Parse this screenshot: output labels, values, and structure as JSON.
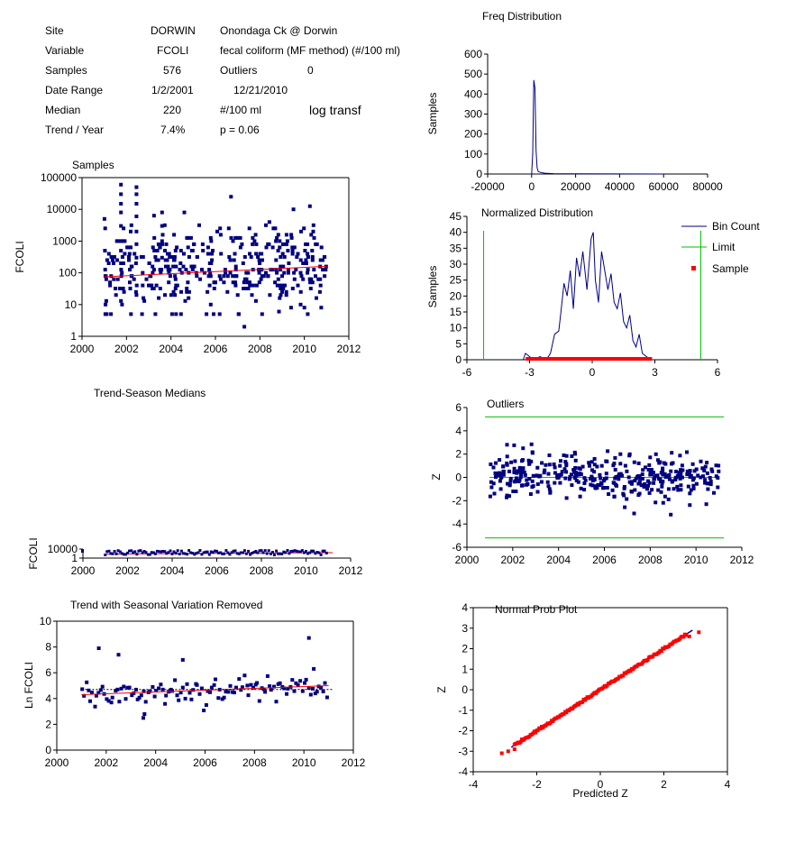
{
  "info": {
    "site_label": "Site",
    "site_value": "DORWIN",
    "site_desc": "Onondaga Ck @ Dorwin",
    "variable_label": "Variable",
    "variable_value": "FCOLI",
    "variable_desc": "fecal coliform (MF method) (#/100 ml)",
    "samples_label": "Samples",
    "samples_value": "576",
    "outliers_label": "Outliers",
    "outliers_value": "0",
    "daterange_label": "Date Range",
    "date_start": "1/2/2001",
    "date_end": "12/21/2010",
    "median_label": "Median",
    "median_value": "220",
    "median_unit": "#/100 ml",
    "transform_note": "log transf",
    "trend_label": "Trend / Year",
    "trend_value": "7.4%",
    "p_value": "p = 0.06"
  },
  "colors": {
    "series": "#000080",
    "trend": "#ff0000",
    "limit": "#00c000",
    "sample": "#ff0000"
  },
  "chart_data": [
    {
      "id": "samples",
      "type": "scatter",
      "title": "Samples",
      "ylabel": "FCOLI",
      "xlabel": "",
      "xlim": [
        2000,
        2012
      ],
      "xticks": [
        "2000",
        "2002",
        "2004",
        "2006",
        "2008",
        "2010",
        "2012"
      ],
      "ylim": [
        1,
        100000
      ],
      "yscale": "log",
      "yticks": [
        "1",
        "10",
        "100",
        "1000",
        "10000",
        "100000"
      ],
      "trend_line": {
        "x": [
          2001.0,
          2011.0
        ],
        "y": [
          75,
          160
        ]
      },
      "series": [
        {
          "x": [],
          "y": []
        }
      ]
    },
    {
      "id": "freq",
      "type": "line",
      "title": "Freq Distribution",
      "ylabel": "Samples",
      "xlabel": "",
      "xlim": [
        -20000,
        80000
      ],
      "xticks": [
        "-20000",
        "0",
        "20000",
        "40000",
        "60000",
        "80000"
      ],
      "ylim": [
        0,
        600
      ],
      "yticks": [
        "0",
        "100",
        "200",
        "300",
        "400",
        "500",
        "600"
      ],
      "series": [
        {
          "x": [
            -1000,
            0,
            500,
            1000,
            1500,
            2000,
            2500,
            3000,
            4000,
            6000,
            10000,
            20000,
            60000
          ],
          "y": [
            0,
            0,
            100,
            470,
            430,
            120,
            30,
            12,
            8,
            4,
            2,
            1,
            0
          ]
        }
      ]
    },
    {
      "id": "normalized",
      "type": "line",
      "title": "Normalized Distribution",
      "ylabel": "Samples",
      "xlabel": "",
      "xlim": [
        -6,
        6
      ],
      "xticks": [
        "-6",
        "-3",
        "0",
        "3",
        "6"
      ],
      "ylim": [
        0,
        45
      ],
      "yticks": [
        "0",
        "5",
        "10",
        "15",
        "20",
        "25",
        "30",
        "35",
        "40",
        "45"
      ],
      "limits": [
        -5.2,
        5.2
      ],
      "legend": [
        "Bin Count",
        "Limit",
        "Sample"
      ],
      "legend_position": "right",
      "series": [
        {
          "x": [
            -3.3,
            -3.2,
            -3.0,
            -2.8,
            -2.5,
            -2.2,
            -2.0,
            -1.8,
            -1.6,
            -1.5,
            -1.35,
            -1.2,
            -1.05,
            -0.9,
            -0.75,
            -0.6,
            -0.45,
            -0.35,
            -0.25,
            -0.15,
            -0.05,
            0.05,
            0.15,
            0.3,
            0.45,
            0.6,
            0.75,
            0.9,
            1.05,
            1.2,
            1.35,
            1.5,
            1.65,
            1.8,
            1.95,
            2.1,
            2.25,
            2.4,
            2.6,
            2.8,
            3.0
          ],
          "y": [
            0,
            2,
            1,
            0,
            1,
            0,
            2,
            8,
            9,
            15,
            24,
            20,
            28,
            16,
            32,
            26,
            34,
            28,
            22,
            30,
            38,
            40,
            25,
            18,
            34,
            28,
            22,
            27,
            18,
            16,
            21,
            12,
            10,
            14,
            6,
            4,
            8,
            2,
            1,
            0,
            0
          ]
        }
      ]
    },
    {
      "id": "trend_season",
      "type": "scatter",
      "title": "Trend-Season Medians",
      "ylabel": "FCOLI",
      "xlabel": "",
      "xlim": [
        2000,
        2012
      ],
      "xticks": [
        "2000",
        "2002",
        "2004",
        "2006",
        "2008",
        "2010",
        "2012"
      ],
      "yticks": [
        "1",
        "10000"
      ],
      "series": [
        {
          "x": [],
          "y": []
        }
      ]
    },
    {
      "id": "outliers",
      "type": "scatter",
      "title": "Outliers",
      "ylabel": "Z",
      "xlabel": "",
      "xlim": [
        2000,
        2012
      ],
      "xticks": [
        "2000",
        "2002",
        "2004",
        "2006",
        "2008",
        "2010",
        "2012"
      ],
      "ylim": [
        -6,
        6
      ],
      "yticks": [
        "-6",
        "-4",
        "-2",
        "0",
        "2",
        "4",
        "6"
      ],
      "limits": [
        -5.2,
        5.2
      ],
      "series": [
        {
          "x": [],
          "y": []
        }
      ]
    },
    {
      "id": "trend_removed",
      "type": "scatter",
      "title": "Trend with Seasonal Variation Removed",
      "ylabel": "Ln FCOLI",
      "xlabel": "",
      "xlim": [
        2000,
        2012
      ],
      "xticks": [
        "2000",
        "2002",
        "2004",
        "2006",
        "2008",
        "2010",
        "2012"
      ],
      "ylim": [
        0,
        10
      ],
      "yticks": [
        "0",
        "2",
        "4",
        "6",
        "8",
        "10"
      ],
      "trend_line": {
        "x": [
          2001.0,
          2011.0
        ],
        "y": [
          4.3,
          5.0
        ]
      },
      "series": [
        {
          "x": [],
          "y": []
        }
      ]
    },
    {
      "id": "normprob",
      "type": "scatter",
      "title": "Normal Prob Plot",
      "ylabel": "Z",
      "xlabel": "Predicted Z",
      "xlim": [
        -4,
        4
      ],
      "xticks": [
        "-4",
        "-2",
        "0",
        "2",
        "4"
      ],
      "ylim": [
        -4,
        4
      ],
      "yticks": [
        "-4",
        "-3",
        "-2",
        "-1",
        "0",
        "1",
        "2",
        "3",
        "4"
      ],
      "series": [
        {
          "x": [],
          "y": []
        }
      ]
    }
  ]
}
